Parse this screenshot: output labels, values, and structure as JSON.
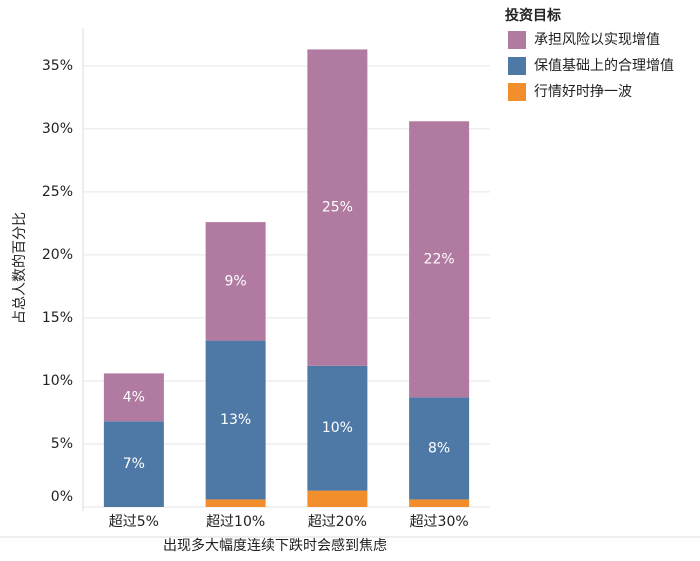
{
  "chart_data": {
    "type": "bar",
    "stacked": true,
    "x_label": "出现多大幅度连续下跌时会感到焦虑",
    "y_label": "占总人数的百分比",
    "legend_title": "投资目标",
    "categories": [
      "超过5%",
      "超过10%",
      "超过20%",
      "超过30%"
    ],
    "series": [
      {
        "name": "行情好时挣一波",
        "color": "#f28e2b",
        "values": [
          0,
          0.6,
          1.3,
          0.6
        ]
      },
      {
        "name": "保值基础上的合理增值",
        "color": "#4e79a7",
        "values": [
          6.8,
          12.6,
          9.9,
          8.1
        ],
        "value_labels": [
          "7%",
          "13%",
          "10%",
          "8%"
        ]
      },
      {
        "name": "承担风险以实现增值",
        "color": "#b07aa1",
        "values": [
          3.8,
          9.4,
          25.1,
          21.9
        ],
        "value_labels": [
          "4%",
          "9%",
          "25%",
          "22%"
        ]
      }
    ],
    "ylim": [
      0,
      38
    ],
    "yticks": [
      {
        "value": 0,
        "label": "0%"
      },
      {
        "value": 5,
        "label": "5%"
      },
      {
        "value": 10,
        "label": "10%"
      },
      {
        "value": 15,
        "label": "15%"
      },
      {
        "value": 20,
        "label": "20%"
      },
      {
        "value": 25,
        "label": "25%"
      },
      {
        "value": 30,
        "label": "30%"
      },
      {
        "value": 35,
        "label": "35%"
      }
    ],
    "grid": true
  }
}
